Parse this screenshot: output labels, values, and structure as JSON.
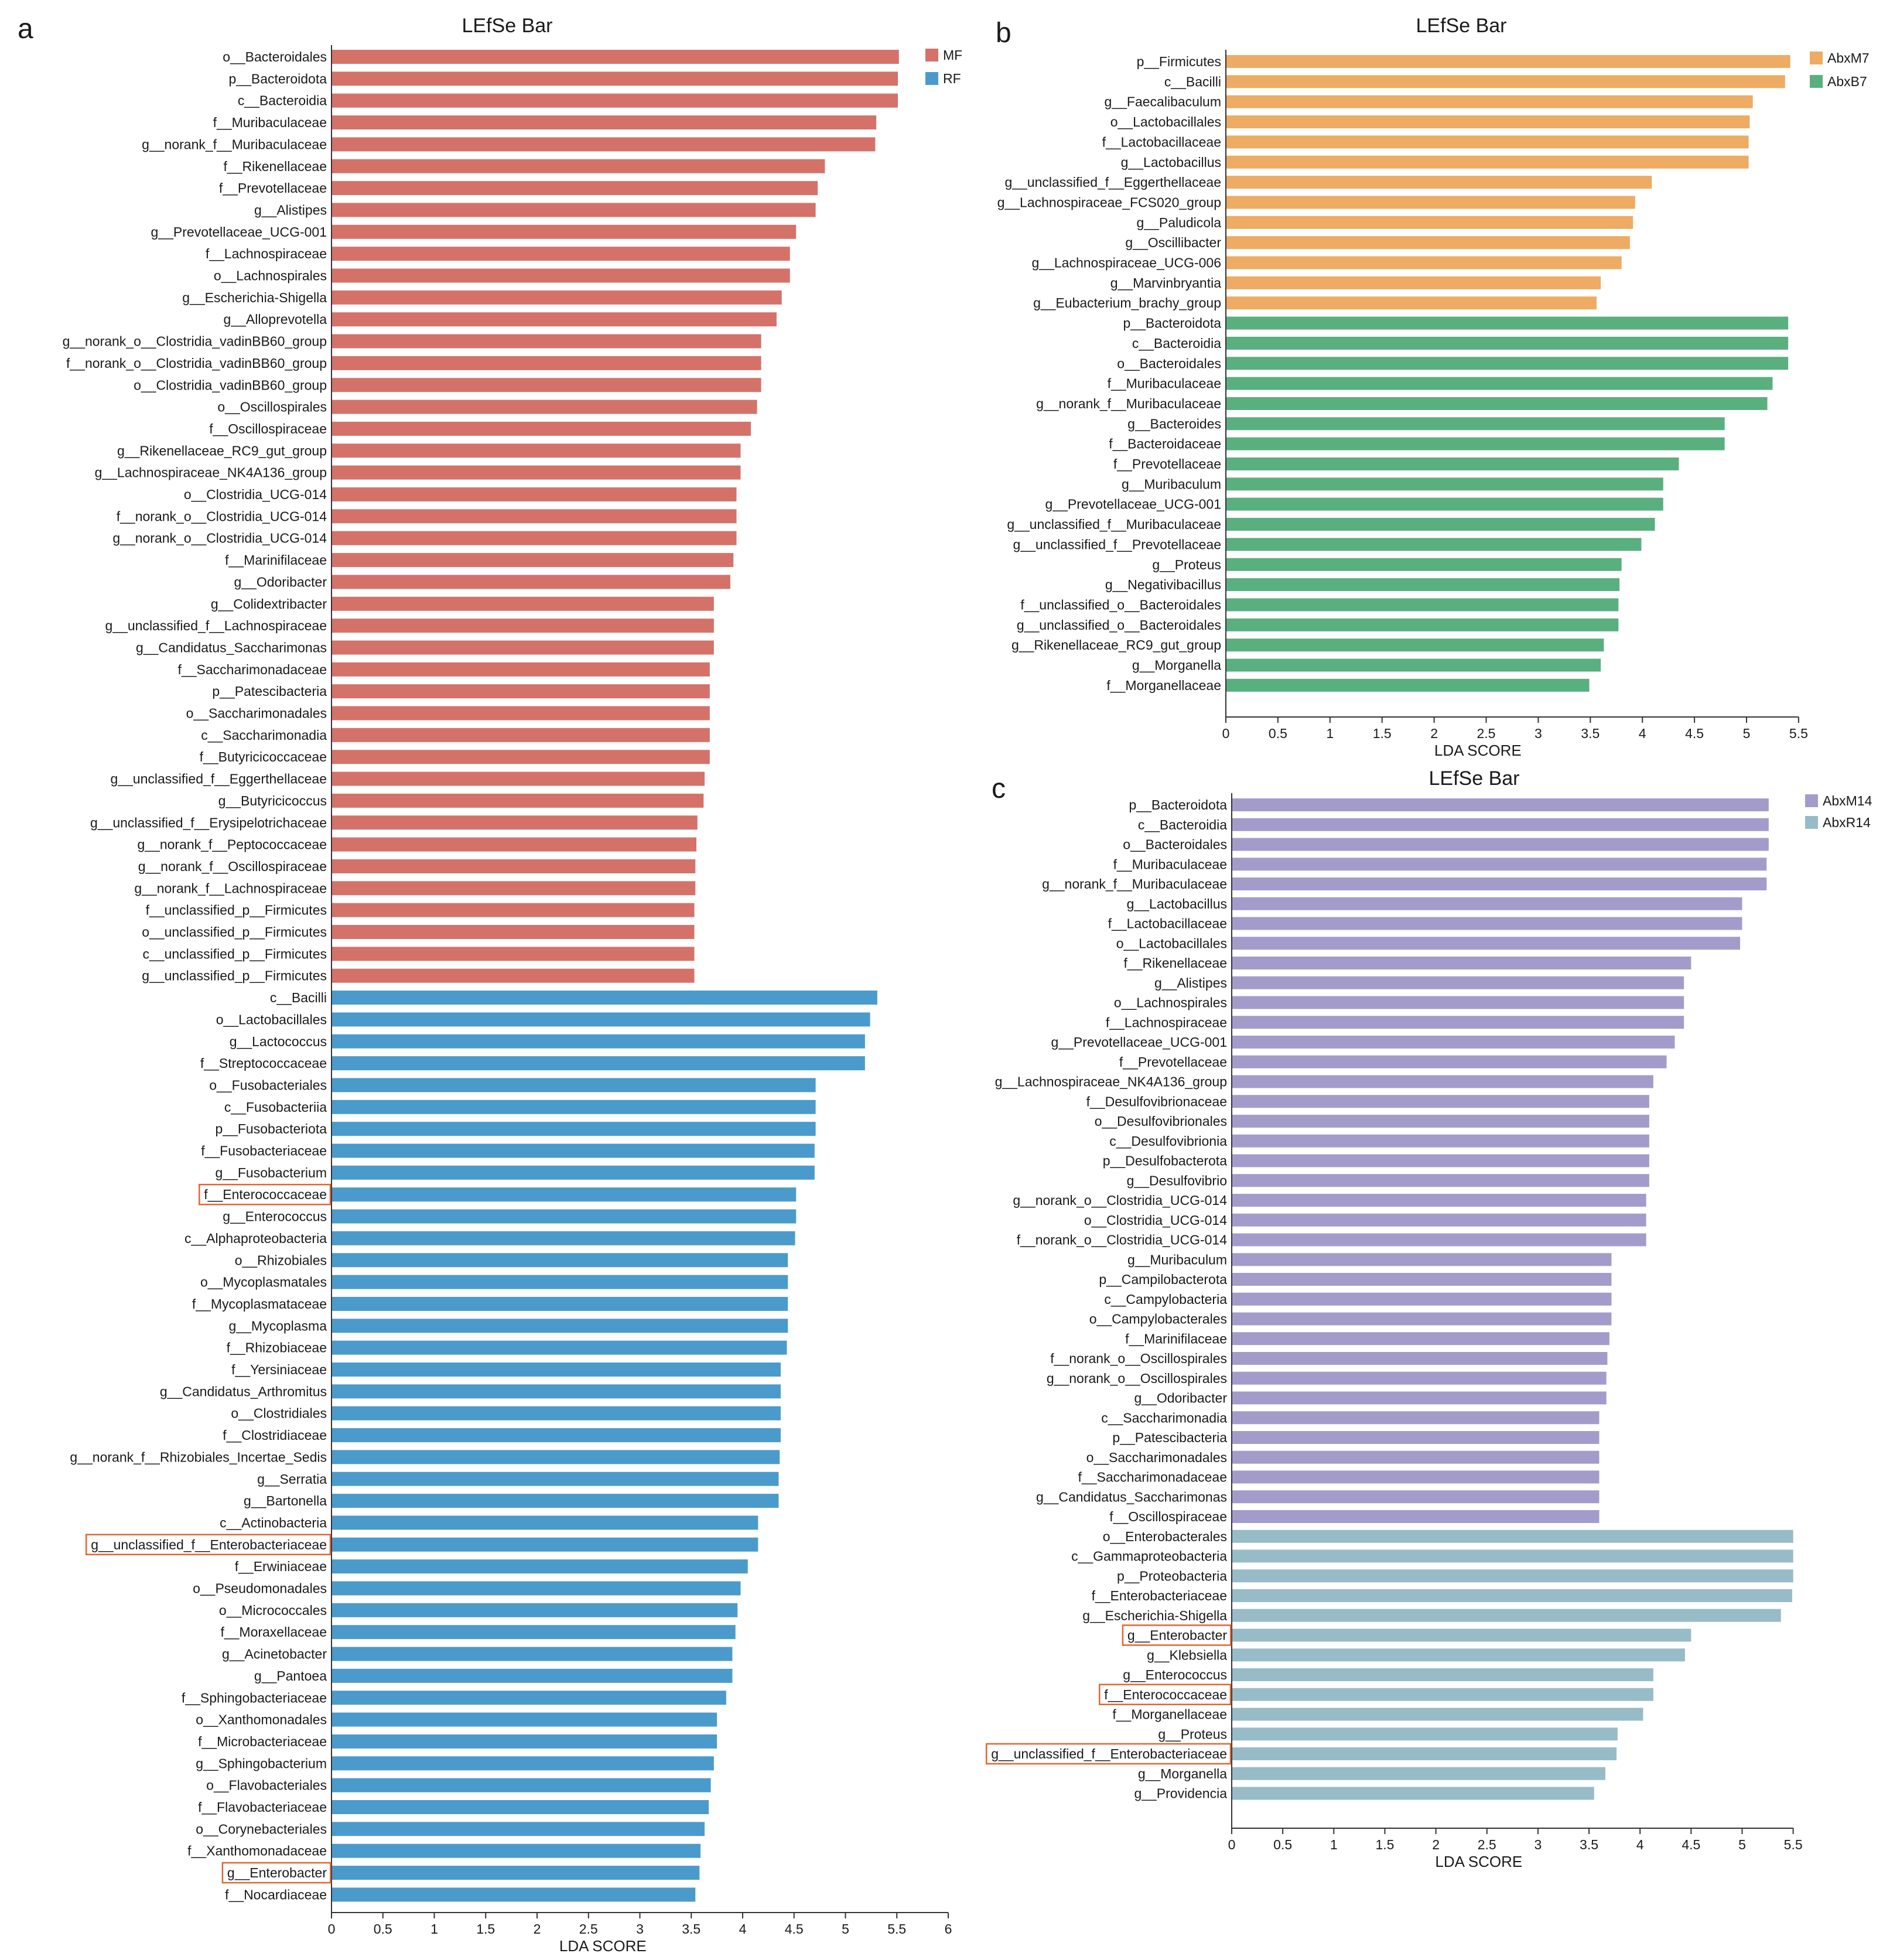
{
  "chart_data": [
    {
      "panel": "a",
      "type": "bar",
      "orientation": "horizontal",
      "title": "LEfSe Bar",
      "xlabel": "LDA SCORE",
      "xlim": [
        0,
        6
      ],
      "xticks": [
        "0",
        "0.5",
        "1",
        "1.5",
        "2",
        "2.5",
        "3",
        "3.5",
        "4",
        "4.5",
        "5",
        "5.5",
        "6"
      ],
      "legend": [
        {
          "name": "MF",
          "color": "#d4726a"
        },
        {
          "name": "RF",
          "color": "#4a9bcb"
        }
      ],
      "highlighted": [
        "f__Enterococcaceae",
        "g__unclassified_f__Enterobacteriaceae",
        "g__Enterobacter"
      ],
      "series": [
        {
          "name": "MF",
          "color": "#d4726a",
          "categories": [
            "o__Bacteroidales",
            "p__Bacteroidota",
            "c__Bacteroidia",
            "f__Muribaculaceae",
            "g__norank_f__Muribaculaceae",
            "f__Rikenellaceae",
            "f__Prevotellaceae",
            "g__Alistipes",
            "g__Prevotellaceae_UCG-001",
            "f__Lachnospiraceae",
            "o__Lachnospirales",
            "g__Escherichia-Shigella",
            "g__Alloprevotella",
            "g__norank_o__Clostridia_vadinBB60_group",
            "f__norank_o__Clostridia_vadinBB60_group",
            "o__Clostridia_vadinBB60_group",
            "o__Oscillospirales",
            "f__Oscillospiraceae",
            "g__Rikenellaceae_RC9_gut_group",
            "g__Lachnospiraceae_NK4A136_group",
            "o__Clostridia_UCG-014",
            "f__norank_o__Clostridia_UCG-014",
            "g__norank_o__Clostridia_UCG-014",
            "f__Marinifilaceae",
            "g__Odoribacter",
            "g__Colidextribacter",
            "g__unclassified_f__Lachnospiraceae",
            "g__Candidatus_Saccharimonas",
            "f__Saccharimonadaceae",
            "p__Patescibacteria",
            "o__Saccharimonadales",
            "c__Saccharimonadia",
            "f__Butyricicoccaceae",
            "g__unclassified_f__Eggerthellaceae",
            "g__Butyricicoccus",
            "g__unclassified_f__Erysipelotrichaceae",
            "g__norank_f__Peptococcaceae",
            "g__norank_f__Oscillospiraceae",
            "g__norank_f__Lachnospiraceae",
            "f__unclassified_p__Firmicutes",
            "o__unclassified_p__Firmicutes",
            "c__unclassified_p__Firmicutes",
            "g__unclassified_p__Firmicutes"
          ],
          "values": [
            5.52,
            5.51,
            5.51,
            5.3,
            5.29,
            4.8,
            4.73,
            4.71,
            4.52,
            4.46,
            4.46,
            4.38,
            4.33,
            4.18,
            4.18,
            4.18,
            4.14,
            4.08,
            3.98,
            3.98,
            3.94,
            3.94,
            3.94,
            3.91,
            3.88,
            3.72,
            3.72,
            3.72,
            3.68,
            3.68,
            3.68,
            3.68,
            3.68,
            3.63,
            3.62,
            3.56,
            3.55,
            3.54,
            3.54,
            3.53,
            3.53,
            3.53,
            3.53
          ]
        },
        {
          "name": "RF",
          "color": "#4a9bcb",
          "categories": [
            "c__Bacilli",
            "o__Lactobacillales",
            "g__Lactococcus",
            "f__Streptococcaceae",
            "o__Fusobacteriales",
            "c__Fusobacteriia",
            "p__Fusobacteriota",
            "f__Fusobacteriaceae",
            "g__Fusobacterium",
            "f__Enterococcaceae",
            "g__Enterococcus",
            "c__Alphaproteobacteria",
            "o__Rhizobiales",
            "o__Mycoplasmatales",
            "f__Mycoplasmataceae",
            "g__Mycoplasma",
            "f__Rhizobiaceae",
            "f__Yersiniaceae",
            "g__Candidatus_Arthromitus",
            "o__Clostridiales",
            "f__Clostridiaceae",
            "g__norank_f__Rhizobiales_Incertae_Sedis",
            "g__Serratia",
            "g__Bartonella",
            "c__Actinobacteria",
            "g__unclassified_f__Enterobacteriaceae",
            "f__Erwiniaceae",
            "o__Pseudomonadales",
            "o__Micrococcales",
            "f__Moraxellaceae",
            "g__Acinetobacter",
            "g__Pantoea",
            "f__Sphingobacteriaceae",
            "o__Xanthomonadales",
            "f__Microbacteriaceae",
            "g__Sphingobacterium",
            "o__Flavobacteriales",
            "f__Flavobacteriaceae",
            "o__Corynebacteriales",
            "f__Xanthomonadaceae",
            "g__Enterobacter",
            "f__Nocardiaceae"
          ],
          "values": [
            5.31,
            5.24,
            5.19,
            5.19,
            4.71,
            4.71,
            4.71,
            4.7,
            4.7,
            4.52,
            4.52,
            4.51,
            4.44,
            4.44,
            4.44,
            4.44,
            4.43,
            4.37,
            4.37,
            4.37,
            4.37,
            4.36,
            4.35,
            4.35,
            4.15,
            4.15,
            4.05,
            3.98,
            3.95,
            3.93,
            3.9,
            3.9,
            3.84,
            3.75,
            3.75,
            3.72,
            3.69,
            3.67,
            3.63,
            3.59,
            3.58,
            3.54
          ]
        }
      ]
    },
    {
      "panel": "b",
      "type": "bar",
      "orientation": "horizontal",
      "title": "LEfSe Bar",
      "xlabel": "LDA SCORE",
      "xlim": [
        0,
        5.5
      ],
      "xticks": [
        "0",
        "0.5",
        "1",
        "1.5",
        "2",
        "2.5",
        "3",
        "3.5",
        "4",
        "4.5",
        "5",
        "5.5"
      ],
      "legend": [
        {
          "name": "AbxM7",
          "color": "#eeab63"
        },
        {
          "name": "AbxB7",
          "color": "#5aaf7f"
        }
      ],
      "highlighted": [],
      "series": [
        {
          "name": "AbxM7",
          "color": "#eeab63",
          "categories": [
            "p__Firmicutes",
            "c__Bacilli",
            "g__Faecalibaculum",
            "o__Lactobacillales",
            "f__Lactobacillaceae",
            "g__Lactobacillus",
            "g__unclassified_f__Eggerthellaceae",
            "g__Lachnospiraceae_FCS020_group",
            "g__Paludicola",
            "g__Oscillibacter",
            "g__Lachnospiraceae_UCG-006",
            "g__Marvinbryantia",
            "g__Eubacterium_brachy_group"
          ],
          "values": [
            5.42,
            5.37,
            5.06,
            5.03,
            5.02,
            5.02,
            4.09,
            3.93,
            3.91,
            3.88,
            3.8,
            3.6,
            3.56
          ]
        },
        {
          "name": "AbxB7",
          "color": "#5aaf7f",
          "categories": [
            "p__Bacteroidota",
            "c__Bacteroidia",
            "o__Bacteroidales",
            "f__Muribaculaceae",
            "g__norank_f__Muribaculaceae",
            "g__Bacteroides",
            "f__Bacteroidaceae",
            "f__Prevotellaceae",
            "g__Muribaculum",
            "g__Prevotellaceae_UCG-001",
            "g__unclassified_f__Muribaculaceae",
            "g__unclassified_f__Prevotellaceae",
            "g__Proteus",
            "g__Negativibacillus",
            "f__unclassified_o__Bacteroidales",
            "g__unclassified_o__Bacteroidales",
            "g__Rikenellaceae_RC9_gut_group",
            "g__Morganella",
            "f__Morganellaceae"
          ],
          "values": [
            5.4,
            5.4,
            5.4,
            5.25,
            5.2,
            4.79,
            4.79,
            4.35,
            4.2,
            4.2,
            4.12,
            3.99,
            3.8,
            3.78,
            3.77,
            3.77,
            3.63,
            3.6,
            3.49
          ]
        }
      ]
    },
    {
      "panel": "c",
      "type": "bar",
      "orientation": "horizontal",
      "title": "LEfSe Bar",
      "xlabel": "LDA SCORE",
      "xlim": [
        0,
        5.5
      ],
      "xticks": [
        "0",
        "0.5",
        "1",
        "1.5",
        "2",
        "2.5",
        "3",
        "3.5",
        "4",
        "4.5",
        "5",
        "5.5"
      ],
      "legend": [
        {
          "name": "AbxM14",
          "color": "#a39ccb"
        },
        {
          "name": "AbxR14",
          "color": "#97bcc7"
        }
      ],
      "highlighted": [
        "g__Enterobacter",
        "f__Enterococcaceae",
        "g__unclassified_f__Enterobacteriaceae"
      ],
      "series": [
        {
          "name": "AbxM14",
          "color": "#a39ccb",
          "categories": [
            "p__Bacteroidota",
            "c__Bacteroidia",
            "o__Bacteroidales",
            "f__Muribaculaceae",
            "g__norank_f__Muribaculaceae",
            "g__Lactobacillus",
            "f__Lactobacillaceae",
            "o__Lactobacillales",
            "f__Rikenellaceae",
            "g__Alistipes",
            "o__Lachnospirales",
            "f__Lachnospiraceae",
            "g__Prevotellaceae_UCG-001",
            "f__Prevotellaceae",
            "g__Lachnospiraceae_NK4A136_group",
            "f__Desulfovibrionaceae",
            "o__Desulfovibrionales",
            "c__Desulfovibrionia",
            "p__Desulfobacterota",
            "g__Desulfovibrio",
            "g__norank_o__Clostridia_UCG-014",
            "o__Clostridia_UCG-014",
            "f__norank_o__Clostridia_UCG-014",
            "g__Muribaculum",
            "p__Campilobacterota",
            "c__Campylobacteria",
            "o__Campylobacterales",
            "f__Marinifilaceae",
            "f__norank_o__Oscillospirales",
            "g__norank_o__Oscillospirales",
            "g__Odoribacter",
            "c__Saccharimonadia",
            "p__Patescibacteria",
            "o__Saccharimonadales",
            "f__Saccharimonadaceae",
            "g__Candidatus_Saccharimonas",
            "f__Oscillospiraceae"
          ],
          "values": [
            5.26,
            5.26,
            5.26,
            5.24,
            5.24,
            5.0,
            5.0,
            4.98,
            4.5,
            4.43,
            4.43,
            4.43,
            4.34,
            4.26,
            4.13,
            4.09,
            4.09,
            4.09,
            4.09,
            4.09,
            4.06,
            4.06,
            4.06,
            3.72,
            3.72,
            3.72,
            3.72,
            3.7,
            3.68,
            3.67,
            3.67,
            3.6,
            3.6,
            3.6,
            3.6,
            3.6,
            3.6
          ]
        },
        {
          "name": "AbxR14",
          "color": "#97bcc7",
          "categories": [
            "o__Enterobacterales",
            "c__Gammaproteobacteria",
            "p__Proteobacteria",
            "f__Enterobacteriaceae",
            "g__Escherichia-Shigella",
            "g__Enterobacter",
            "g__Klebsiella",
            "g__Enterococcus",
            "f__Enterococcaceae",
            "f__Morganellaceae",
            "g__Proteus",
            "g__unclassified_f__Enterobacteriaceae",
            "g__Morganella",
            "g__Providencia"
          ],
          "values": [
            5.5,
            5.5,
            5.5,
            5.49,
            5.38,
            4.5,
            4.44,
            4.13,
            4.13,
            4.03,
            3.78,
            3.77,
            3.66,
            3.55
          ]
        }
      ]
    }
  ]
}
